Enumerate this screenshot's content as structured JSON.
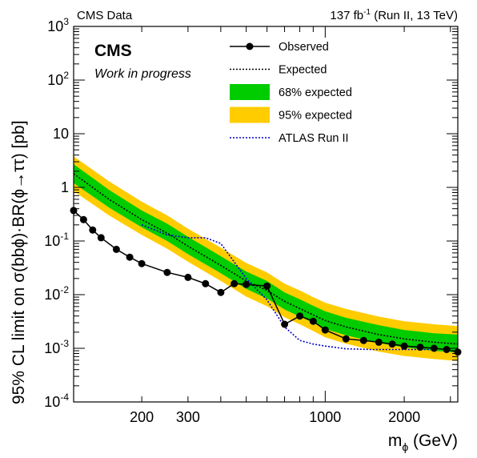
{
  "header": {
    "left": "CMS Data",
    "right_lumi": "137 fb",
    "right_exp": "-1",
    "right_tail": " (Run II, 13 TeV)"
  },
  "labels": {
    "cms": "CMS",
    "progress": "Work in progress",
    "ylabel": "95% CL limit on  σ(bbϕ)·BR(ϕ→ττ) [pb]",
    "xlabel_main": "m",
    "xlabel_sub": "ϕ",
    "xlabel_tail": " (GeV)"
  },
  "chart_data": {
    "type": "line",
    "xscale": "log",
    "yscale": "log",
    "xlim": [
      110,
      3200
    ],
    "ylim": [
      0.0001,
      1000
    ],
    "x_ticks": [
      {
        "value": 200,
        "label": "200"
      },
      {
        "value": 300,
        "label": "300"
      },
      {
        "value": 1000,
        "label": "1000"
      },
      {
        "value": 2000,
        "label": "2000"
      }
    ],
    "y_ticks": [
      {
        "value": 0.0001,
        "base": "10",
        "exp": "-4"
      },
      {
        "value": 0.001,
        "base": "10",
        "exp": "-3"
      },
      {
        "value": 0.01,
        "base": "10",
        "exp": "-2"
      },
      {
        "value": 0.1,
        "base": "10",
        "exp": "-1"
      },
      {
        "value": 1,
        "base": "1",
        "exp": ""
      },
      {
        "value": 10,
        "base": "10",
        "exp": ""
      },
      {
        "value": 100,
        "base": "10",
        "exp": "2"
      },
      {
        "value": 1000,
        "base": "10",
        "exp": "3"
      }
    ],
    "legend_position": "top-right",
    "legend": [
      {
        "label": "Observed",
        "kind": "line-marker"
      },
      {
        "label": "Expected",
        "kind": "dotted"
      },
      {
        "label": "68% expected",
        "kind": "box",
        "color": "#00cc00"
      },
      {
        "label": "95% expected",
        "kind": "box",
        "color": "#ffcc00"
      },
      {
        "label": "ATLAS Run II",
        "kind": "dotted-blue",
        "color": "#0000cc"
      }
    ],
    "colors": {
      "band68": "#00cc00",
      "band95": "#ffcc00",
      "observed": "#000000",
      "atlas": "#0000cc"
    },
    "observed": {
      "x": [
        110,
        120,
        130,
        140,
        160,
        180,
        200,
        250,
        300,
        350,
        400,
        450,
        500,
        600,
        700,
        800,
        900,
        1000,
        1200,
        1400,
        1600,
        1800,
        2000,
        2300,
        2600,
        2900,
        3200
      ],
      "y": [
        0.37,
        0.25,
        0.16,
        0.115,
        0.07,
        0.05,
        0.038,
        0.026,
        0.021,
        0.016,
        0.011,
        0.016,
        0.0155,
        0.0145,
        0.0028,
        0.004,
        0.0032,
        0.0022,
        0.0015,
        0.0014,
        0.0013,
        0.0012,
        0.0011,
        0.00105,
        0.001,
        0.00095,
        0.00085
      ]
    },
    "expected": {
      "x": [
        110,
        150,
        200,
        250,
        300,
        400,
        500,
        600,
        700,
        800,
        900,
        1000,
        1200,
        1600,
        2000,
        2600,
        3200
      ],
      "y": [
        1.8,
        0.6,
        0.25,
        0.14,
        0.08,
        0.035,
        0.018,
        0.012,
        0.0075,
        0.0055,
        0.0042,
        0.0033,
        0.0025,
        0.0018,
        0.0015,
        0.0013,
        0.0012
      ]
    },
    "band68": {
      "x": [
        110,
        150,
        200,
        250,
        300,
        400,
        500,
        600,
        700,
        800,
        900,
        1000,
        1200,
        1600,
        2000,
        2600,
        3200
      ],
      "low": [
        1.2,
        0.42,
        0.18,
        0.1,
        0.057,
        0.025,
        0.0128,
        0.0085,
        0.0053,
        0.0039,
        0.003,
        0.0023,
        0.00175,
        0.00125,
        0.00104,
        0.0009,
        0.00083
      ],
      "high": [
        2.7,
        0.9,
        0.37,
        0.21,
        0.12,
        0.052,
        0.027,
        0.018,
        0.011,
        0.0082,
        0.0062,
        0.0049,
        0.0037,
        0.0027,
        0.0022,
        0.0019,
        0.0018
      ]
    },
    "band95": {
      "x": [
        110,
        150,
        200,
        250,
        300,
        400,
        500,
        600,
        700,
        800,
        900,
        1000,
        1200,
        1600,
        2000,
        2600,
        3200
      ],
      "low": [
        0.85,
        0.3,
        0.13,
        0.072,
        0.041,
        0.018,
        0.0092,
        0.0061,
        0.0038,
        0.0028,
        0.0021,
        0.0016,
        0.00122,
        0.00087,
        0.00072,
        0.00063,
        0.00058
      ],
      "high": [
        3.8,
        1.3,
        0.54,
        0.3,
        0.17,
        0.075,
        0.039,
        0.026,
        0.016,
        0.012,
        0.009,
        0.0071,
        0.0054,
        0.0039,
        0.0032,
        0.0028,
        0.0026
      ]
    },
    "atlas": {
      "x": [
        200,
        250,
        300,
        350,
        400,
        500,
        600,
        700,
        800,
        900,
        1000,
        1200,
        1500,
        2000,
        2500
      ],
      "y": [
        0.2,
        0.13,
        0.115,
        0.115,
        0.09,
        0.02,
        0.008,
        0.0025,
        0.0014,
        0.0012,
        0.0011,
        0.00098,
        0.00095,
        0.00095,
        0.00095
      ]
    }
  }
}
